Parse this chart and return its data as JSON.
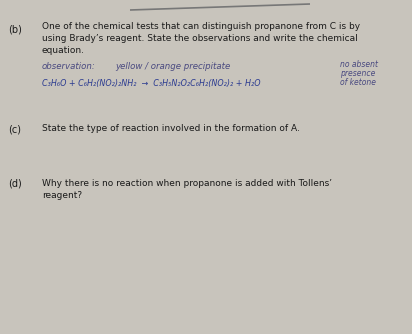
{
  "bg_color": "#c8c4bc",
  "top_line_color": "#777777",
  "label_b": "(b)",
  "label_c": "(c)",
  "label_d": "(d)",
  "text_b_line1": "One of the chemical tests that can distinguish propanone from C is by",
  "text_b_line2": "using Brady’s reagent. State the observations and write the chemical",
  "text_b_line3": "equation.",
  "obs_label": "observation:",
  "obs_value": "yellow / orange precipitate",
  "side_note_line1": "no absent",
  "side_note_line2": "presence",
  "side_note_line3": "of ketone",
  "equation": "C₃H₆O + C₆H₂(NO₂)₂NH₂  →  C₃H₅N₂O₂C₆H₂(NO₂)₂ + H₂O",
  "text_c": "State the type of reaction involved in the formation of A.",
  "text_d_line1": "Why there is no reaction when propanone is added with Tollens’",
  "text_d_line2": "reagent?",
  "main_text_color": "#1a1a1a",
  "blue_text_color": "#2a3a90",
  "obs_text_color": "#4a4a80",
  "main_fontsize": 6.5,
  "label_fontsize": 7.0,
  "eq_fontsize": 5.8,
  "obs_fontsize": 6.2,
  "side_note_fontsize": 5.5
}
